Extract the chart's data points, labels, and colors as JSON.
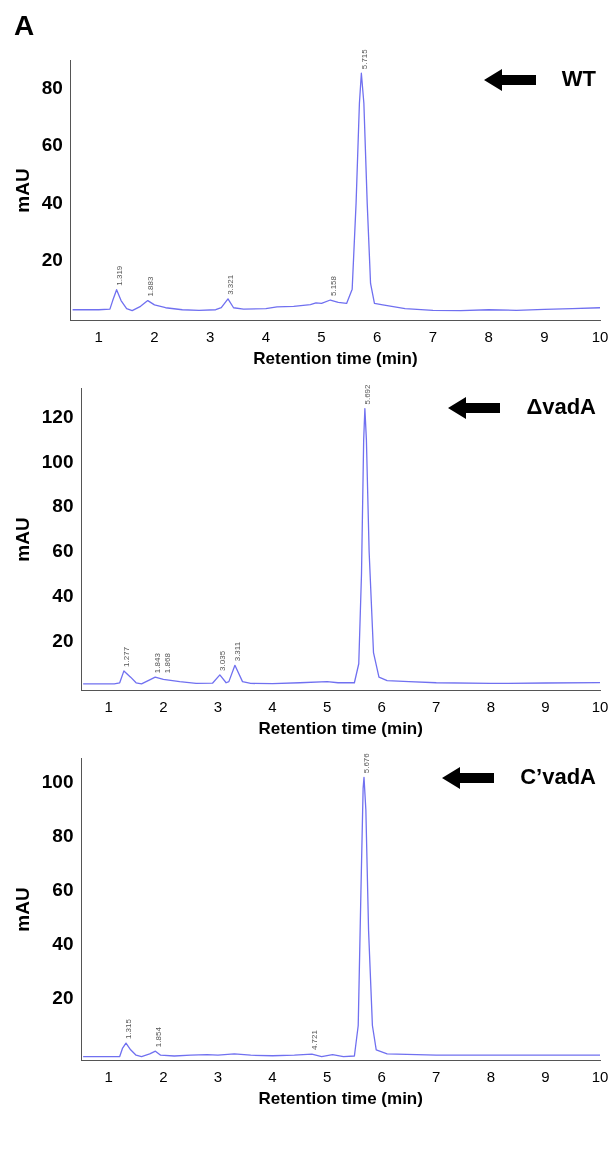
{
  "chart_data": [
    {
      "type": "line",
      "title": "WT",
      "xlabel": "Retention time (min)",
      "ylabel": "mAU",
      "xlim": [
        0.5,
        10
      ],
      "xticks": [
        1,
        2,
        3,
        4,
        5,
        6,
        7,
        8,
        9,
        10
      ],
      "ylim": [
        -1,
        90
      ],
      "yticks": [
        20,
        40,
        60,
        80
      ],
      "grid": false,
      "legend": false,
      "marker": "none",
      "line_style": "solid",
      "annotations": [
        "A",
        {
          "text": "1.319",
          "x": 1.319,
          "y": 9.8
        },
        {
          "text": "1.883",
          "x": 1.883,
          "y": 6
        },
        {
          "text": "3.321",
          "x": 3.321,
          "y": 6.6
        },
        {
          "text": "5.158",
          "x": 5.158,
          "y": 6.2
        },
        {
          "text": "5.715",
          "x": 5.715,
          "y": 85.5
        }
      ],
      "series": [
        {
          "color": "#7070f0",
          "x": [
            0.53,
            1.0,
            1.2,
            1.25,
            1.32,
            1.4,
            1.5,
            1.6,
            1.75,
            1.88,
            2.0,
            2.2,
            2.5,
            2.8,
            3.1,
            3.2,
            3.32,
            3.42,
            3.6,
            4.0,
            4.2,
            4.5,
            4.8,
            4.9,
            5.0,
            5.158,
            5.3,
            5.45,
            5.55,
            5.62,
            5.68,
            5.715,
            5.76,
            5.82,
            5.88,
            5.95,
            6.1,
            6.5,
            7.0,
            7.5,
            8.0,
            8.5,
            9.0,
            9.5,
            10
          ],
          "values": [
            2.8,
            2.8,
            3,
            6,
            9.8,
            6,
            3.2,
            2.5,
            4,
            6,
            4.5,
            3.5,
            2.8,
            2.6,
            2.8,
            3.5,
            6.6,
            3.5,
            3,
            3.2,
            3.8,
            4,
            4.6,
            5.2,
            5,
            6.2,
            5.4,
            5,
            10,
            40,
            75,
            85.5,
            75,
            40,
            12,
            5,
            4.5,
            3.2,
            2.6,
            2.5,
            2.8,
            2.6,
            2.9,
            3.2,
            3.5
          ]
        }
      ]
    },
    {
      "type": "line",
      "title": "ΔvadA",
      "xlabel": "Retention time (min)",
      "ylabel": "mAU",
      "xlim": [
        0.5,
        10
      ],
      "xticks": [
        1,
        2,
        3,
        4,
        5,
        6,
        7,
        8,
        9,
        10
      ],
      "ylim": [
        -2,
        133
      ],
      "yticks": [
        20,
        40,
        60,
        80,
        100,
        120
      ],
      "grid": false,
      "legend": false,
      "marker": "none",
      "line_style": "solid",
      "annotations": [
        {
          "text": "1.277",
          "x": 1.277,
          "y": 6.8
        },
        {
          "text": "1.843",
          "x": 1.843,
          "y": 4
        },
        {
          "text": "1.868",
          "x": 1.868,
          "y": 4
        },
        {
          "text": "3.035",
          "x": 3.035,
          "y": 5
        },
        {
          "text": "3.311",
          "x": 3.311,
          "y": 9.3
        },
        {
          "text": "5.692",
          "x": 5.692,
          "y": 124
        }
      ],
      "series": [
        {
          "color": "#7070f0",
          "x": [
            0.53,
            1.1,
            1.2,
            1.277,
            1.4,
            1.5,
            1.6,
            1.75,
            1.85,
            2.0,
            2.3,
            2.6,
            2.9,
            3.035,
            3.15,
            3.2,
            3.311,
            3.45,
            3.6,
            4.0,
            4.5,
            5.0,
            5.2,
            5.5,
            5.58,
            5.63,
            5.67,
            5.692,
            5.72,
            5.77,
            5.85,
            5.95,
            6.1,
            6.5,
            7,
            8,
            9,
            10
          ],
          "values": [
            1,
            1,
            1.5,
            6.8,
            4,
            1.5,
            1,
            2.8,
            4,
            3,
            2,
            1.2,
            1.3,
            5,
            1.5,
            2,
            9.3,
            2,
            1.2,
            1.1,
            1.5,
            2,
            1.5,
            1.5,
            10,
            50,
            110,
            124,
            110,
            60,
            15,
            4,
            2.5,
            2,
            1.5,
            1.2,
            1.4,
            1.6
          ]
        }
      ]
    },
    {
      "type": "line",
      "title": "C’vadA",
      "xlabel": "Retention time (min)",
      "ylabel": "mAU",
      "xlim": [
        0.5,
        10
      ],
      "xticks": [
        1,
        2,
        3,
        4,
        5,
        6,
        7,
        8,
        9,
        10
      ],
      "ylim": [
        -3,
        109
      ],
      "yticks": [
        20,
        40,
        60,
        80,
        100
      ],
      "grid": false,
      "legend": false,
      "marker": "none",
      "line_style": "solid",
      "annotations": [
        {
          "text": "1.315",
          "x": 1.315,
          "y": 3.5
        },
        {
          "text": "1.854",
          "x": 1.854,
          "y": 0.5
        },
        {
          "text": "4.721",
          "x": 4.721,
          "y": -0.6
        },
        {
          "text": "5.676",
          "x": 5.676,
          "y": 102
        }
      ],
      "series": [
        {
          "color": "#7070f0",
          "x": [
            0.53,
            1.2,
            1.25,
            1.315,
            1.4,
            1.5,
            1.6,
            1.75,
            1.854,
            1.95,
            2.2,
            2.5,
            2.8,
            3.0,
            3.3,
            3.6,
            4.0,
            4.4,
            4.721,
            4.9,
            5.1,
            5.3,
            5.5,
            5.57,
            5.62,
            5.66,
            5.676,
            5.71,
            5.76,
            5.83,
            5.9,
            6.1,
            7,
            8,
            9,
            10
          ],
          "values": [
            -1.5,
            -1.5,
            1.5,
            3.5,
            1,
            -1,
            -1.5,
            -0.5,
            0.5,
            -1,
            -1.3,
            -1,
            -0.8,
            -1,
            -0.5,
            -1,
            -1.2,
            -1,
            -0.6,
            -1.5,
            -0.8,
            -1.5,
            -1.3,
            10,
            60,
            98,
            102,
            90,
            45,
            10,
            1,
            -0.5,
            -1,
            -1,
            -1,
            -1
          ]
        }
      ]
    }
  ]
}
